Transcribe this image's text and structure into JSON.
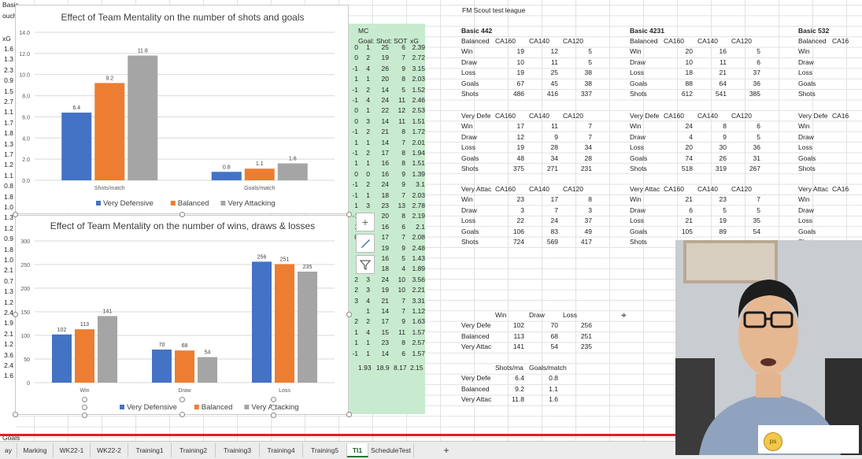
{
  "left_strip": {
    "header": [
      "Basic",
      "ouch",
      "xG"
    ],
    "values": [
      "1.6",
      "1.3",
      "2.3",
      "0.9",
      "1.5",
      "2.7",
      "1.1",
      "1.7",
      "1.8",
      "1.3",
      "1.7",
      "1.2",
      "1.1",
      "0.8",
      "1.8",
      "1.0",
      "1.3",
      "1.2",
      "0.9",
      "1.8",
      "1.0",
      "2.1",
      "0.7",
      "1.3",
      "1.2",
      "2.4",
      "1.9",
      "2.1",
      "1.2",
      "3.6",
      "2.4",
      "1.6"
    ],
    "bottom": "Goals"
  },
  "chart1": {
    "title": "Effect of Team Mentality on the number of shots and goals",
    "chart_data": {
      "type": "bar",
      "categories": [
        "Shots/match",
        "Goals/match"
      ],
      "series": [
        {
          "name": "Very Defensive",
          "color": "#4472c4",
          "values": [
            6.4,
            0.8
          ]
        },
        {
          "name": "Balanced",
          "color": "#ed7d31",
          "values": [
            9.2,
            1.1
          ]
        },
        {
          "name": "Very Attacking",
          "color": "#a5a5a5",
          "values": [
            11.8,
            1.6
          ]
        }
      ],
      "ylim": [
        0,
        14
      ],
      "yticks": [
        "0.0",
        "2.0",
        "4.0",
        "6.0",
        "8.0",
        "10.0",
        "12.0",
        "14.0"
      ],
      "grid": true,
      "legend": "bottom"
    },
    "data_labels": [
      [
        "6.4",
        "0.8"
      ],
      [
        "9.2",
        "1.1"
      ],
      [
        "11.8",
        "1.6"
      ]
    ]
  },
  "chart2": {
    "title": "Effect of Team Mentality on the number of wins, draws & losses",
    "chart_data": {
      "type": "bar",
      "categories": [
        "Win",
        "Draw",
        "Loss"
      ],
      "series": [
        {
          "name": "Very Defensive",
          "color": "#4472c4",
          "values": [
            102,
            70,
            256
          ]
        },
        {
          "name": "Balanced",
          "color": "#ed7d31",
          "values": [
            113,
            68,
            251
          ]
        },
        {
          "name": "Very Attacking",
          "color": "#a5a5a5",
          "values": [
            141,
            54,
            235
          ]
        }
      ],
      "ylim": [
        0,
        300
      ],
      "yticks": [
        "0",
        "50",
        "100",
        "150",
        "200",
        "250",
        "300"
      ],
      "grid": true,
      "legend": "bottom"
    }
  },
  "mc": {
    "title": "MC",
    "headers": [
      "Goal",
      "Shot",
      "SOT",
      "xG"
    ],
    "rows": [
      [
        "0",
        "1",
        "25",
        "6",
        "2.39"
      ],
      [
        "0",
        "2",
        "19",
        "7",
        "2.72"
      ],
      [
        "-1",
        "4",
        "26",
        "9",
        "3.15"
      ],
      [
        "1",
        "1",
        "20",
        "8",
        "2.03"
      ],
      [
        "-1",
        "2",
        "14",
        "5",
        "1.52"
      ],
      [
        "-1",
        "4",
        "24",
        "11",
        "2.46"
      ],
      [
        "0",
        "1",
        "22",
        "12",
        "2.53"
      ],
      [
        "0",
        "3",
        "14",
        "11",
        "1.51"
      ],
      [
        "-1",
        "2",
        "21",
        "8",
        "1.72"
      ],
      [
        "1",
        "1",
        "14",
        "7",
        "2.01"
      ],
      [
        "-1",
        "2",
        "17",
        "8",
        "1.94"
      ],
      [
        "1",
        "1",
        "16",
        "8",
        "1.51"
      ],
      [
        "0",
        "0",
        "16",
        "9",
        "1.39"
      ],
      [
        "-1",
        "2",
        "24",
        "9",
        "3.1"
      ],
      [
        "-1",
        "1",
        "18",
        "7",
        "2.03"
      ],
      [
        "1",
        "3",
        "23",
        "13",
        "2.78"
      ],
      [
        "-1",
        "1",
        "20",
        "8",
        "2.19"
      ],
      [
        "1",
        "1",
        "16",
        "6",
        "2.1"
      ],
      [
        "0",
        "2",
        "17",
        "7",
        "2.08"
      ],
      [
        "",
        "2",
        "19",
        "9",
        "2.48"
      ],
      [
        "",
        "1",
        "16",
        "5",
        "1.43"
      ],
      [
        "",
        "0",
        "18",
        "4",
        "1.89"
      ],
      [
        "2",
        "3",
        "24",
        "10",
        "3.56"
      ],
      [
        "2",
        "3",
        "19",
        "10",
        "2.21"
      ],
      [
        "3",
        "4",
        "21",
        "7",
        "3.31"
      ],
      [
        "",
        "1",
        "14",
        "7",
        "1.12"
      ],
      [
        "2",
        "2",
        "17",
        "9",
        "1.63"
      ],
      [
        "1",
        "4",
        "15",
        "11",
        "1.57"
      ],
      [
        "1",
        "1",
        "23",
        "8",
        "2.57"
      ],
      [
        "-1",
        "1",
        "14",
        "6",
        "1.57"
      ]
    ],
    "avg": [
      "1.93",
      "18.9",
      "8.17",
      "2.15"
    ]
  },
  "league_title": "FM Scout test league",
  "blocks": [
    {
      "title": "Basic 442",
      "col": "a",
      "sections": [
        {
          "head": [
            "Balanced",
            "CA160",
            "CA140",
            "CA120"
          ],
          "rows": [
            [
              "Win",
              "19",
              "12",
              "5"
            ],
            [
              "Draw",
              "10",
              "11",
              "5"
            ],
            [
              "Loss",
              "19",
              "25",
              "38"
            ],
            [
              "Goals",
              "67",
              "45",
              "38"
            ],
            [
              "Shots",
              "486",
              "416",
              "337"
            ]
          ]
        },
        {
          "head": [
            "Very Defe",
            "CA160",
            "CA140",
            "CA120"
          ],
          "rows": [
            [
              "Win",
              "17",
              "11",
              "7"
            ],
            [
              "Draw",
              "12",
              "9",
              "7"
            ],
            [
              "Loss",
              "19",
              "28",
              "34"
            ],
            [
              "Goals",
              "48",
              "34",
              "28"
            ],
            [
              "Shots",
              "375",
              "271",
              "231"
            ]
          ]
        },
        {
          "head": [
            "Very Attac",
            "CA160",
            "CA140",
            "CA120"
          ],
          "rows": [
            [
              "Win",
              "23",
              "17",
              "8"
            ],
            [
              "Draw",
              "3",
              "7",
              "3"
            ],
            [
              "Loss",
              "22",
              "24",
              "37"
            ],
            [
              "Goals",
              "106",
              "83",
              "49"
            ],
            [
              "Shots",
              "724",
              "569",
              "417"
            ]
          ]
        }
      ]
    },
    {
      "title": "Basic 4231",
      "col": "b",
      "sections": [
        {
          "head": [
            "Balanced",
            "CA160",
            "CA140",
            "CA120"
          ],
          "rows": [
            [
              "Win",
              "20",
              "16",
              "5"
            ],
            [
              "Draw",
              "10",
              "11",
              "6"
            ],
            [
              "Loss",
              "18",
              "21",
              "37"
            ],
            [
              "Goals",
              "88",
              "64",
              "36"
            ],
            [
              "Shots",
              "612",
              "541",
              "385"
            ]
          ]
        },
        {
          "head": [
            "Very Defe",
            "CA160",
            "CA140",
            "CA120"
          ],
          "rows": [
            [
              "Win",
              "24",
              "8",
              "6"
            ],
            [
              "Draw",
              "4",
              "9",
              "5"
            ],
            [
              "Loss",
              "20",
              "30",
              "36"
            ],
            [
              "Goals",
              "74",
              "26",
              "31"
            ],
            [
              "Shots",
              "518",
              "319",
              "267"
            ]
          ]
        },
        {
          "head": [
            "Very Attac",
            "CA160",
            "CA140",
            "CA120"
          ],
          "rows": [
            [
              "Win",
              "21",
              "23",
              "7"
            ],
            [
              "Draw",
              "6",
              "5",
              "5"
            ],
            [
              "Loss",
              "21",
              "19",
              "35"
            ],
            [
              "Goals",
              "105",
              "89",
              "54"
            ],
            [
              "Shots",
              "",
              "",
              ""
            ]
          ]
        }
      ]
    },
    {
      "title": "Basic 532",
      "col": "c",
      "sections": [
        {
          "head": [
            "Balanced",
            "CA16"
          ],
          "rows": [
            [
              "Win"
            ],
            [
              "Draw"
            ],
            [
              "Loss"
            ],
            [
              "Goals"
            ],
            [
              "Shots"
            ]
          ]
        },
        {
          "head": [
            "Very Defe",
            "CA16"
          ],
          "rows": [
            [
              "Win"
            ],
            [
              "Draw"
            ],
            [
              "Loss"
            ],
            [
              "Goals"
            ],
            [
              "Shots"
            ]
          ]
        },
        {
          "head": [
            "Very Attac",
            "CA16"
          ],
          "rows": [
            [
              "Win"
            ],
            [
              "Draw"
            ],
            [
              "Loss"
            ],
            [
              "Goals"
            ],
            [
              "Shots"
            ]
          ]
        }
      ]
    }
  ],
  "summary1": {
    "head": [
      "Win",
      "Draw",
      "Loss"
    ],
    "rows": [
      [
        "Very Defe",
        "102",
        "70",
        "256"
      ],
      [
        "Balanced",
        "113",
        "68",
        "251"
      ],
      [
        "Very Attac",
        "141",
        "54",
        "235"
      ]
    ]
  },
  "summary2": {
    "head": [
      "Shots/ma",
      "Goals/match"
    ],
    "rows": [
      [
        "Very Defe",
        "6.4",
        "0.8"
      ],
      [
        "Balanced",
        "9.2",
        "1.1"
      ],
      [
        "Very Attac",
        "11.8",
        "1.6"
      ]
    ]
  },
  "tabs": [
    "ay",
    "Marking",
    "WK22-1",
    "WK22-2",
    "Training1",
    "Training2",
    "Training3",
    "Training4",
    "Training5",
    "TI1",
    "ScheduleTest"
  ],
  "active_tab": "TI1",
  "add_sheet": "+",
  "webcam_logo": "ps",
  "colors": {
    "blue": "#4472c4",
    "orange": "#ed7d31",
    "gray": "#a5a5a5",
    "green": "#c8ebcf",
    "accent": "#e02020"
  }
}
